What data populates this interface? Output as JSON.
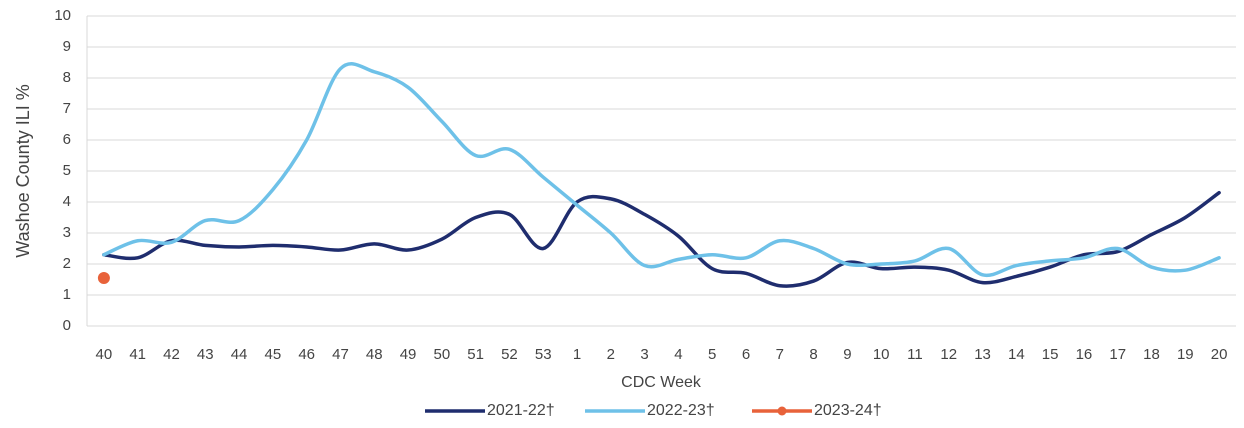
{
  "chart_data": {
    "type": "line",
    "y_label": "Washoe County ILI %",
    "x_label": "CDC Week",
    "categories": [
      "40",
      "41",
      "42",
      "43",
      "44",
      "45",
      "46",
      "47",
      "48",
      "49",
      "50",
      "51",
      "52",
      "53",
      "1",
      "2",
      "3",
      "4",
      "5",
      "6",
      "7",
      "8",
      "9",
      "10",
      "11",
      "12",
      "13",
      "14",
      "15",
      "16",
      "17",
      "18",
      "19",
      "20"
    ],
    "series": [
      {
        "name": "2021-22†",
        "color": "#1f2d6e",
        "values": [
          2.3,
          2.2,
          2.75,
          2.6,
          2.55,
          2.6,
          2.55,
          2.45,
          2.65,
          2.45,
          2.8,
          3.5,
          3.6,
          2.5,
          4.0,
          4.1,
          3.6,
          2.9,
          1.85,
          1.7,
          1.3,
          1.45,
          2.05,
          1.85,
          1.9,
          1.8,
          1.4,
          1.6,
          1.9,
          2.3,
          2.4,
          2.95,
          3.5,
          4.3
        ]
      },
      {
        "name": "2022-23†",
        "color": "#6ec1e8",
        "values": [
          2.3,
          2.75,
          2.7,
          3.4,
          3.4,
          4.4,
          6.0,
          8.3,
          8.2,
          7.7,
          6.6,
          5.5,
          5.7,
          4.8,
          3.9,
          3.0,
          1.95,
          2.15,
          2.3,
          2.2,
          2.75,
          2.5,
          2.0,
          2.0,
          2.1,
          2.5,
          1.65,
          1.95,
          2.1,
          2.2,
          2.5,
          1.9,
          1.8,
          2.2
        ]
      },
      {
        "name": "2023-24†",
        "color": "#e8623a",
        "values": [
          1.55,
          null,
          null,
          null,
          null,
          null,
          null,
          null,
          null,
          null,
          null,
          null,
          null,
          null,
          null,
          null,
          null,
          null,
          null,
          null,
          null,
          null,
          null,
          null,
          null,
          null,
          null,
          null,
          null,
          null,
          null,
          null,
          null,
          null
        ]
      }
    ],
    "ylim": [
      0,
      10
    ],
    "yticks": [
      0,
      1,
      2,
      3,
      4,
      5,
      6,
      7,
      8,
      9,
      10
    ],
    "grid": true,
    "legend": "bottom"
  }
}
